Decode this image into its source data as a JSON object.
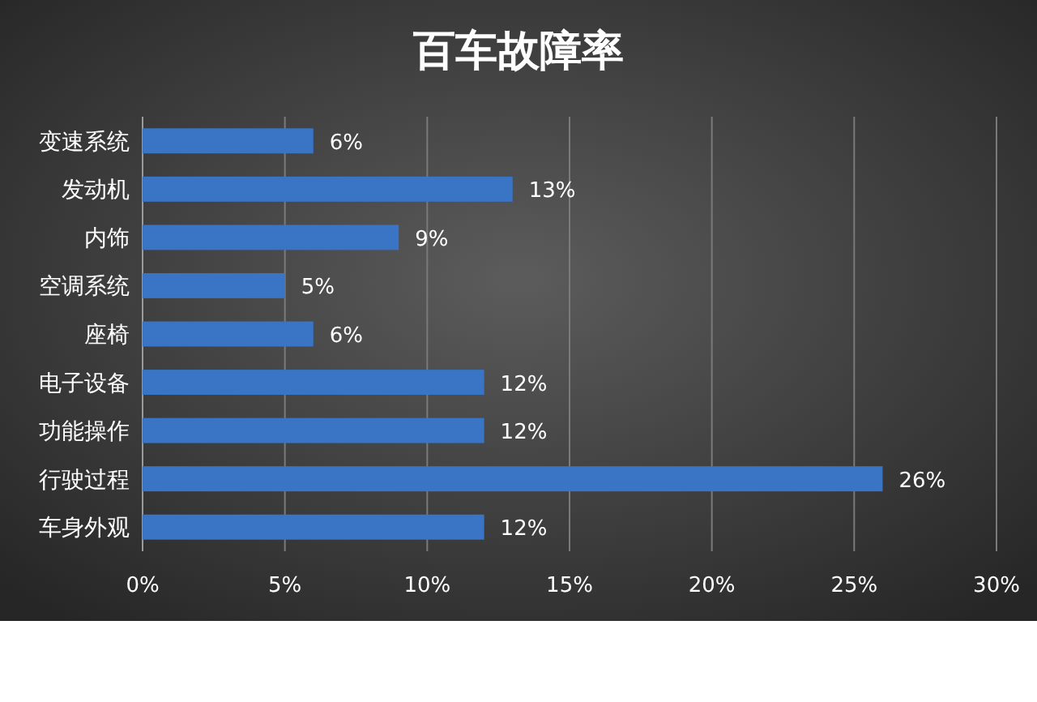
{
  "chart_data": {
    "type": "bar",
    "orientation": "horizontal",
    "title": "百车故障率",
    "categories": [
      "变速系统",
      "发动机",
      "内饰",
      "空调系统",
      "座椅",
      "电子设备",
      "功能操作",
      "行驶过程",
      "车身外观"
    ],
    "values": [
      6,
      13,
      9,
      5,
      6,
      12,
      12,
      26,
      12
    ],
    "value_labels": [
      "6%",
      "13%",
      "9%",
      "5%",
      "6%",
      "12%",
      "12%",
      "26%",
      "12%"
    ],
    "color": "#3a74c4",
    "xlim": [
      0,
      30
    ],
    "xticks": [
      {
        "value": 0,
        "label": "0%"
      },
      {
        "value": 5,
        "label": "5%"
      },
      {
        "value": 10,
        "label": "10%"
      },
      {
        "value": 15,
        "label": "15%"
      },
      {
        "value": 20,
        "label": "20%"
      },
      {
        "value": 25,
        "label": "25%"
      },
      {
        "value": 30,
        "label": "30%"
      }
    ],
    "grid": "x"
  }
}
